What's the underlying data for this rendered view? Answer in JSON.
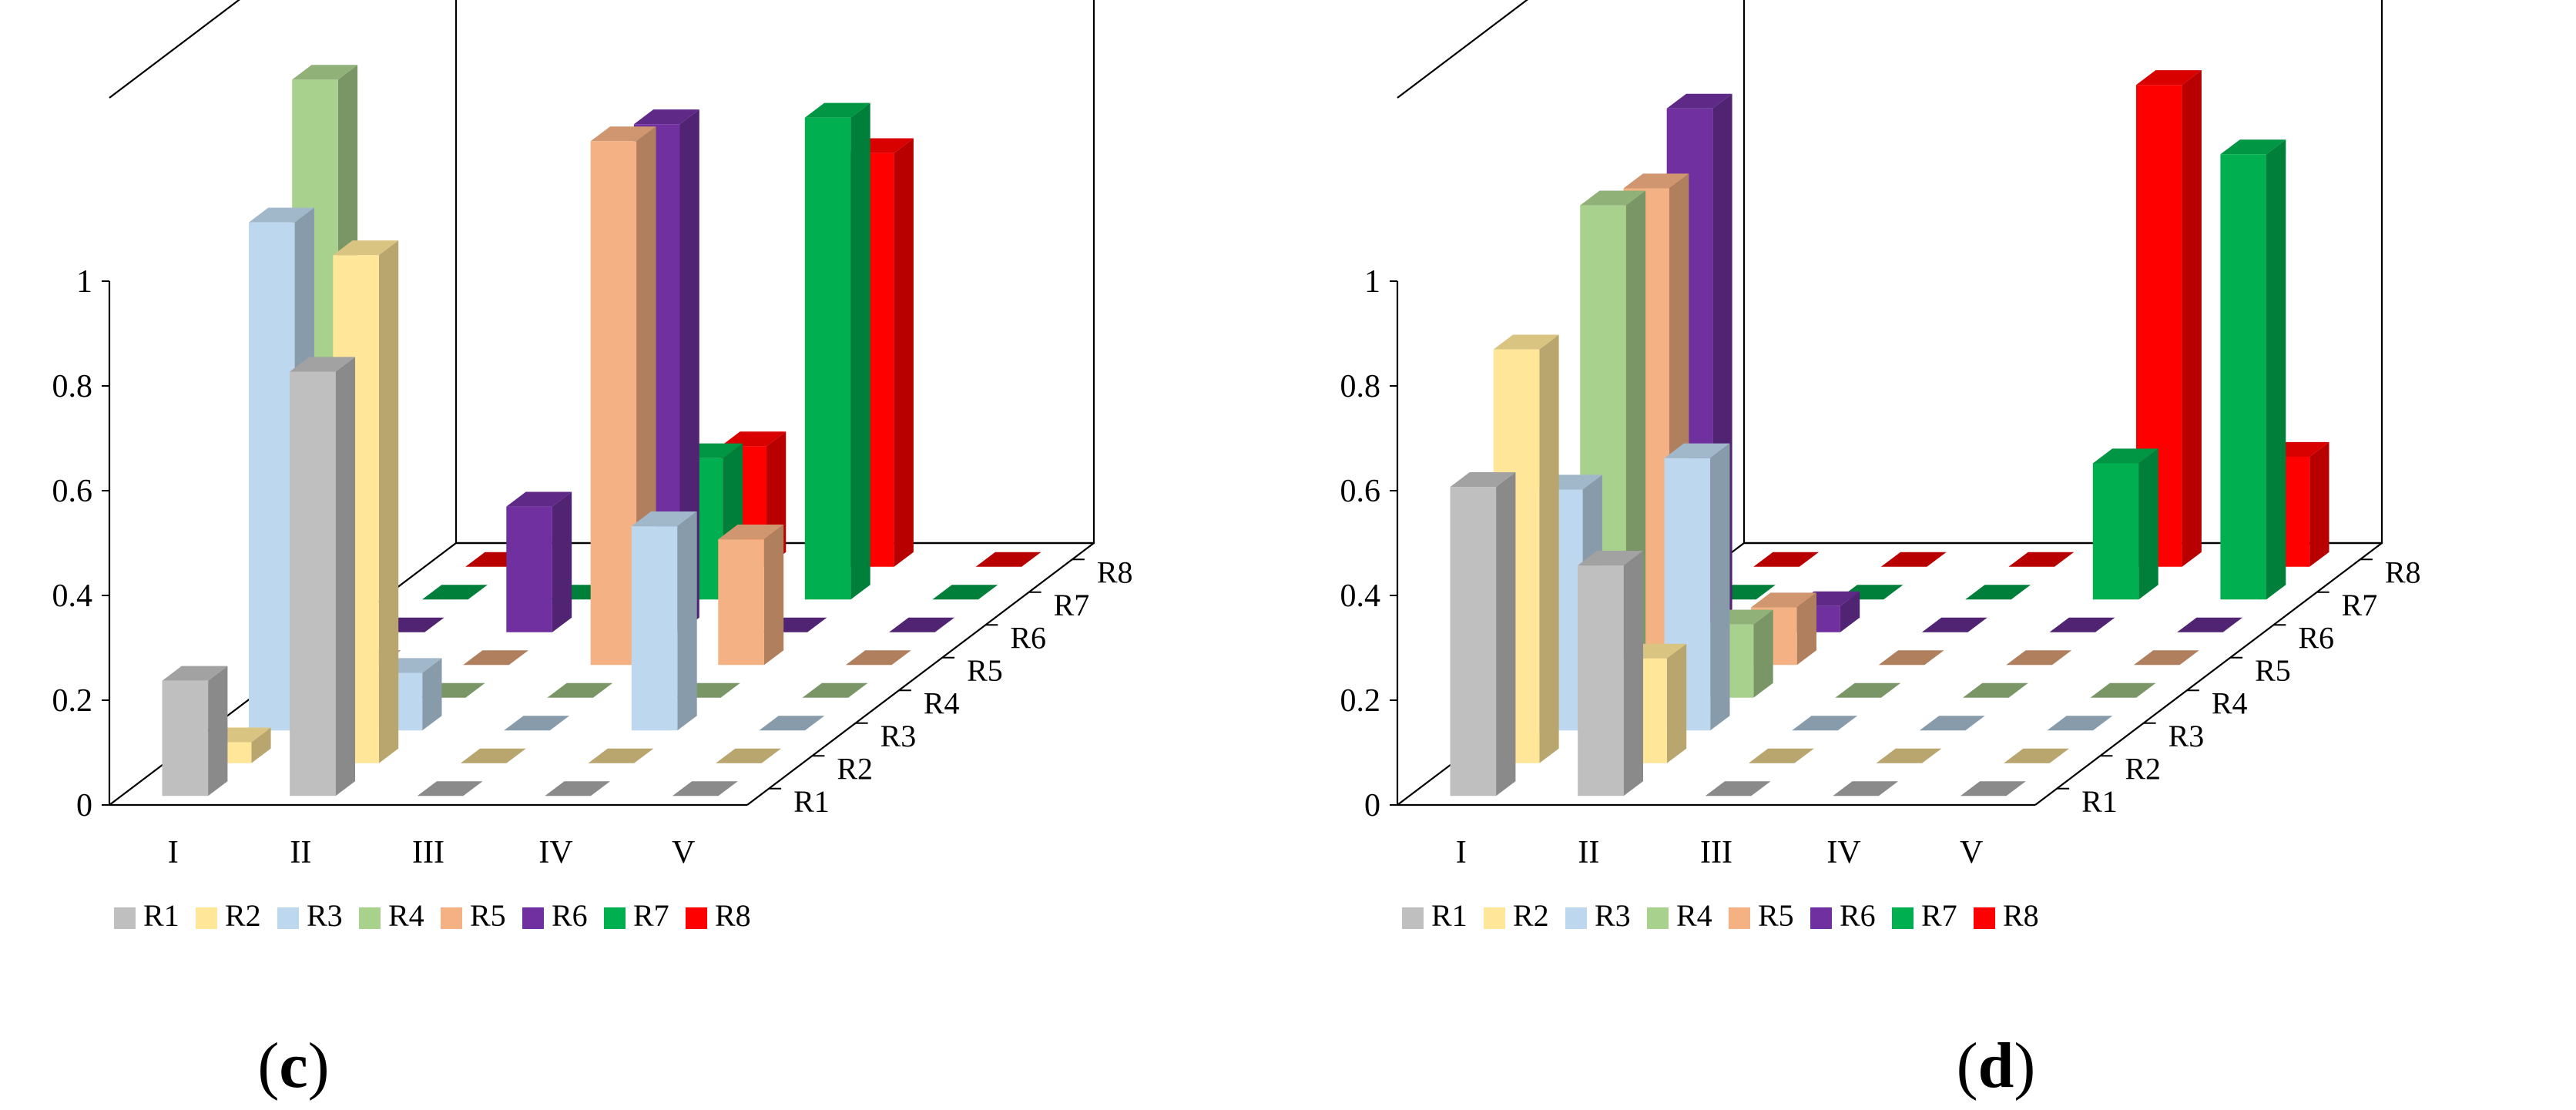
{
  "chart_data": [
    {
      "type": "bar",
      "panel_label": "c",
      "title": "",
      "categories": [
        "I",
        "II",
        "III",
        "IV",
        "V"
      ],
      "series_names": [
        "R1",
        "R2",
        "R3",
        "R4",
        "R5",
        "R6",
        "R7",
        "R8"
      ],
      "zlim": [
        0,
        1
      ],
      "z_ticks": [
        "0",
        "0.2",
        "0.4",
        "0.6",
        "0.8",
        "1"
      ],
      "series": [
        {
          "name": "R1",
          "color": "#BFBFBF",
          "values": [
            0.22,
            0.81,
            0,
            0,
            0
          ]
        },
        {
          "name": "R2",
          "color": "#FFE699",
          "values": [
            0.04,
            0.97,
            0,
            0,
            0
          ]
        },
        {
          "name": "R3",
          "color": "#BDD7EE",
          "values": [
            0.97,
            0.11,
            0,
            0.39,
            0
          ]
        },
        {
          "name": "R4",
          "color": "#A9D18E",
          "values": [
            1.18,
            0,
            0,
            0,
            0
          ]
        },
        {
          "name": "R5",
          "color": "#F4B183",
          "values": [
            0,
            0,
            1,
            0.24,
            0
          ]
        },
        {
          "name": "R6",
          "color": "#7030A0",
          "values": [
            0,
            0.24,
            0.97,
            0,
            0
          ]
        },
        {
          "name": "R7",
          "color": "#00B050",
          "values": [
            0,
            0,
            0.27,
            0.92,
            0
          ]
        },
        {
          "name": "R8",
          "color": "#FF0000",
          "values": [
            0,
            0,
            0.23,
            0.79,
            0
          ]
        }
      ]
    },
    {
      "type": "bar",
      "panel_label": "d",
      "title": "",
      "categories": [
        "I",
        "II",
        "III",
        "IV",
        "V"
      ],
      "series_names": [
        "R1",
        "R2",
        "R3",
        "R4",
        "R5",
        "R6",
        "R7",
        "R8"
      ],
      "zlim": [
        0,
        1
      ],
      "z_ticks": [
        "0",
        "0.2",
        "0.4",
        "0.6",
        "0.8",
        "1"
      ],
      "series": [
        {
          "name": "R1",
          "color": "#BFBFBF",
          "values": [
            0.59,
            0.44,
            0,
            0,
            0
          ]
        },
        {
          "name": "R2",
          "color": "#FFE699",
          "values": [
            0.79,
            0.2,
            0,
            0,
            0
          ]
        },
        {
          "name": "R3",
          "color": "#BDD7EE",
          "values": [
            0.46,
            0.52,
            0,
            0,
            0
          ]
        },
        {
          "name": "R4",
          "color": "#A9D18E",
          "values": [
            0.94,
            0.14,
            0,
            0,
            0
          ]
        },
        {
          "name": "R5",
          "color": "#F4B183",
          "values": [
            0.91,
            0.11,
            0,
            0,
            0
          ]
        },
        {
          "name": "R6",
          "color": "#7030A0",
          "values": [
            1.0,
            0.05,
            0,
            0,
            0
          ]
        },
        {
          "name": "R7",
          "color": "#00B050",
          "values": [
            0,
            0,
            0,
            0.26,
            0.85
          ]
        },
        {
          "name": "R8",
          "color": "#FF0000",
          "values": [
            0,
            0,
            0,
            0.92,
            0.21
          ]
        }
      ]
    }
  ]
}
